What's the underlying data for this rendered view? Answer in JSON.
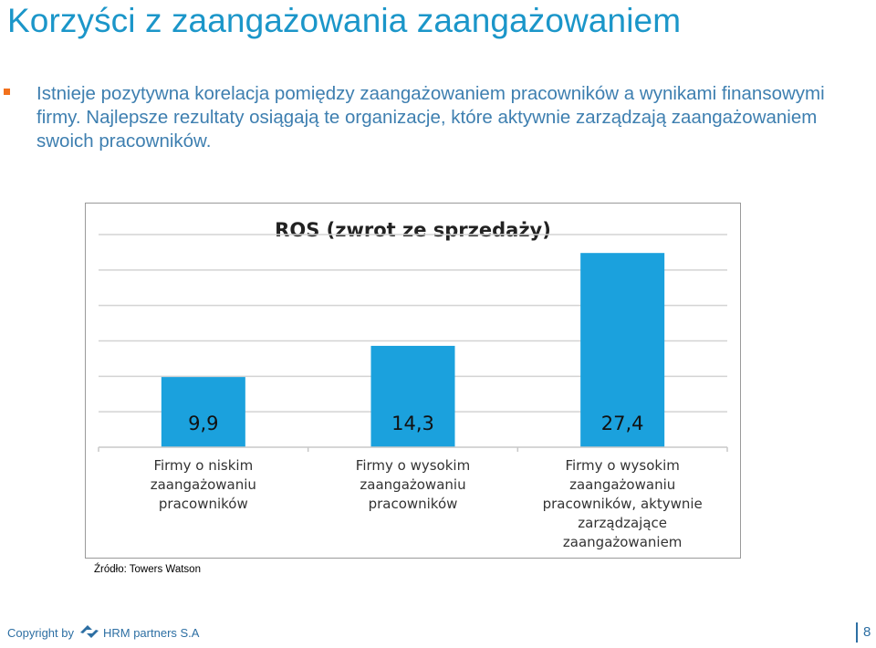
{
  "slide": {
    "title": "Korzyści z zaangażowania zaangażowaniem",
    "bullet": "Istnieje pozytywna korelacja pomiędzy zaangażowaniem pracowników a wynikami finansowymi firmy. Najlepsze rezultaty osiągają te organizacje, które aktywnie zarządzają zaangażowaniem swoich pracowników.",
    "source": "Źródło: Towers Watson",
    "bullet_color": "#f2711c",
    "accent_color": "#1b96c9"
  },
  "footer": {
    "copyright": "Copyright by",
    "logo_icon": "hrm-partners-logo-icon",
    "company": "HRM partners S.A",
    "page_number": "8"
  },
  "chart_data": {
    "type": "bar",
    "title": "ROS (zwrot ze sprzedaży)",
    "categories": [
      [
        "Firmy o niskim",
        "zaangażowaniu",
        "pracowników"
      ],
      [
        "Firmy o wysokim",
        "zaangażowaniu",
        "pracowników"
      ],
      [
        "Firmy o wysokim",
        "zaangażowaniu",
        "pracowników, aktywnie",
        "zarządzające",
        "zaangażowaniem"
      ]
    ],
    "values": [
      9.9,
      14.3,
      27.4
    ],
    "value_labels": [
      "9,9",
      "14,3",
      "27,4"
    ],
    "ylim": [
      0,
      30
    ],
    "grid": true,
    "bar_color": "#1ba1dd"
  }
}
